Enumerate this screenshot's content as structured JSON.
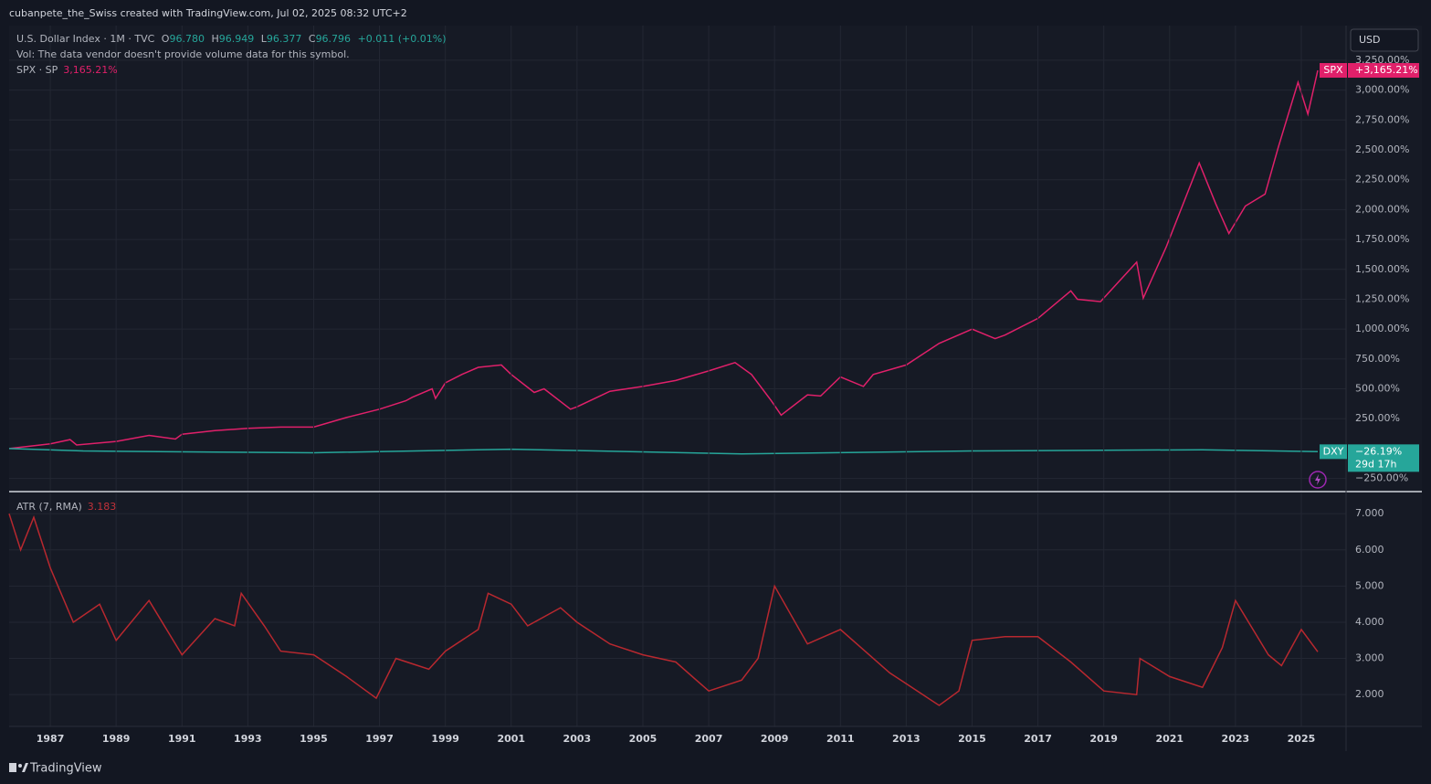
{
  "header": "cubanpete_the_Swiss created with TradingView.com, Jul 02, 2025 08:32 UTC+2",
  "footer": "TradingView",
  "currency": "USD",
  "chart_data": [
    {
      "type": "line",
      "legend": {
        "symbol": "U.S. Dollar Index · 1M · TVC",
        "o_label": "O",
        "o": "96.780",
        "h_label": "H",
        "h": "96.949",
        "l_label": "L",
        "l": "96.377",
        "c_label": "C",
        "c": "96.796",
        "change": "+0.011 (+0.01%)",
        "volume_note": "Vol: The data vendor doesn't provide volume data for this symbol.",
        "compare": "SPX · SP",
        "compare_value": "3,165.21%"
      },
      "series": [
        {
          "name": "SPX",
          "color": "#e0206a",
          "last_label": "+3,165.21%",
          "x": [
            1985.75,
            1987,
            1987.6,
            1987.8,
            1989,
            1990,
            1990.8,
            1991,
            1992,
            1993,
            1994,
            1995,
            1996,
            1997,
            1997.8,
            1998,
            1998.6,
            1998.7,
            1999,
            1999.5,
            2000,
            2000.7,
            2001,
            2001.7,
            2002,
            2002.8,
            2003,
            2004,
            2005,
            2006,
            2007,
            2007.8,
            2008.3,
            2008.9,
            2009.2,
            2010,
            2010.4,
            2011,
            2011.7,
            2012,
            2013,
            2014,
            2015,
            2015.7,
            2016,
            2017,
            2018,
            2018.2,
            2018.9,
            2019.3,
            2020,
            2020.2,
            2020.9,
            2021.9,
            2022.4,
            2022.8,
            2023.3,
            2023.9,
            2024.3,
            2024.9,
            2025.2,
            2025.5
          ],
          "values": [
            0,
            40,
            75,
            30,
            60,
            110,
            80,
            120,
            150,
            170,
            180,
            180,
            260,
            330,
            400,
            430,
            500,
            420,
            550,
            620,
            680,
            700,
            620,
            470,
            500,
            330,
            350,
            480,
            520,
            570,
            650,
            720,
            620,
            400,
            280,
            450,
            440,
            600,
            520,
            620,
            700,
            880,
            1000,
            920,
            950,
            1090,
            1320,
            1250,
            1230,
            1350,
            1560,
            1260,
            1690,
            2390,
            2050,
            1800,
            2030,
            2130,
            2520,
            3066,
            2800,
            3165.21
          ]
        },
        {
          "name": "DXY",
          "color": "#26a69a",
          "last_label": "−26.19%",
          "countdown": "29d 17h",
          "x": [
            1985.75,
            1988,
            1992,
            1995,
            2001,
            2008,
            2015,
            2022,
            2025.5
          ],
          "values": [
            0,
            -20,
            -30,
            -35,
            -5,
            -45,
            -20,
            -10,
            -26.19
          ]
        }
      ],
      "xlim": [
        1985.75,
        2026.36
      ],
      "ylim": [
        -360,
        3540
      ],
      "yticks": [
        {
          "value": -250,
          "label": "−250.00%"
        },
        {
          "value": 250,
          "label": "250.00%"
        },
        {
          "value": 500,
          "label": "500.00%"
        },
        {
          "value": 750,
          "label": "750.00%"
        },
        {
          "value": 1000,
          "label": "1,000.00%"
        },
        {
          "value": 1250,
          "label": "1,250.00%"
        },
        {
          "value": 1500,
          "label": "1,500.00%"
        },
        {
          "value": 1750,
          "label": "1,750.00%"
        },
        {
          "value": 2000,
          "label": "2,000.00%"
        },
        {
          "value": 2250,
          "label": "2,250.00%"
        },
        {
          "value": 2500,
          "label": "2,500.00%"
        },
        {
          "value": 2750,
          "label": "2,750.00%"
        },
        {
          "value": 3000,
          "label": "3,000.00%"
        },
        {
          "value": 3250,
          "label": "3,250.00%"
        }
      ],
      "grid": true
    },
    {
      "type": "line",
      "title": "ATR (7, RMA)",
      "last_value_label": "3.183",
      "series": [
        {
          "name": "ATR",
          "color": "#b8282f",
          "x": [
            1985.75,
            1986.1,
            1986.5,
            1987,
            1987.7,
            1988.5,
            1989,
            1990,
            1991,
            1992,
            1992.6,
            1992.8,
            1993.5,
            1994,
            1995,
            1996,
            1996.9,
            1997.5,
            1998.5,
            1999,
            2000,
            2000.3,
            2001,
            2001.5,
            2002.5,
            2003,
            2004,
            2005,
            2006,
            2007,
            2008,
            2008.5,
            2009,
            2010,
            2011,
            2012,
            2012.5,
            2013,
            2014,
            2014.6,
            2015,
            2016,
            2017,
            2018,
            2019,
            2020,
            2020.1,
            2021,
            2022,
            2022.6,
            2023,
            2024,
            2024.4,
            2025,
            2025.5
          ],
          "values": [
            7.0,
            6.0,
            6.9,
            5.5,
            4.0,
            4.5,
            3.5,
            4.6,
            3.1,
            4.1,
            3.9,
            4.8,
            3.9,
            3.2,
            3.1,
            2.5,
            1.9,
            3.0,
            2.7,
            3.2,
            3.8,
            4.8,
            4.5,
            3.9,
            4.4,
            4.0,
            3.4,
            3.1,
            2.9,
            2.1,
            2.4,
            3.0,
            5.0,
            3.4,
            3.8,
            3.0,
            2.6,
            2.3,
            1.7,
            2.1,
            3.5,
            3.6,
            3.6,
            2.9,
            2.1,
            2.0,
            3.0,
            2.5,
            2.2,
            3.3,
            4.6,
            3.1,
            2.8,
            3.8,
            3.183
          ]
        }
      ],
      "xlim": [
        1985.75,
        2026.36
      ],
      "ylim": [
        1.12,
        7.56
      ],
      "yticks": [
        {
          "value": 2,
          "label": "2.000"
        },
        {
          "value": 3,
          "label": "3.000"
        },
        {
          "value": 4,
          "label": "4.000"
        },
        {
          "value": 5,
          "label": "5.000"
        },
        {
          "value": 6,
          "label": "6.000"
        },
        {
          "value": 7,
          "label": "7.000"
        }
      ],
      "xticks": [
        1987,
        1989,
        1991,
        1993,
        1995,
        1997,
        1999,
        2001,
        2003,
        2005,
        2007,
        2009,
        2011,
        2013,
        2015,
        2017,
        2019,
        2021,
        2023,
        2025
      ],
      "grid": true
    }
  ]
}
